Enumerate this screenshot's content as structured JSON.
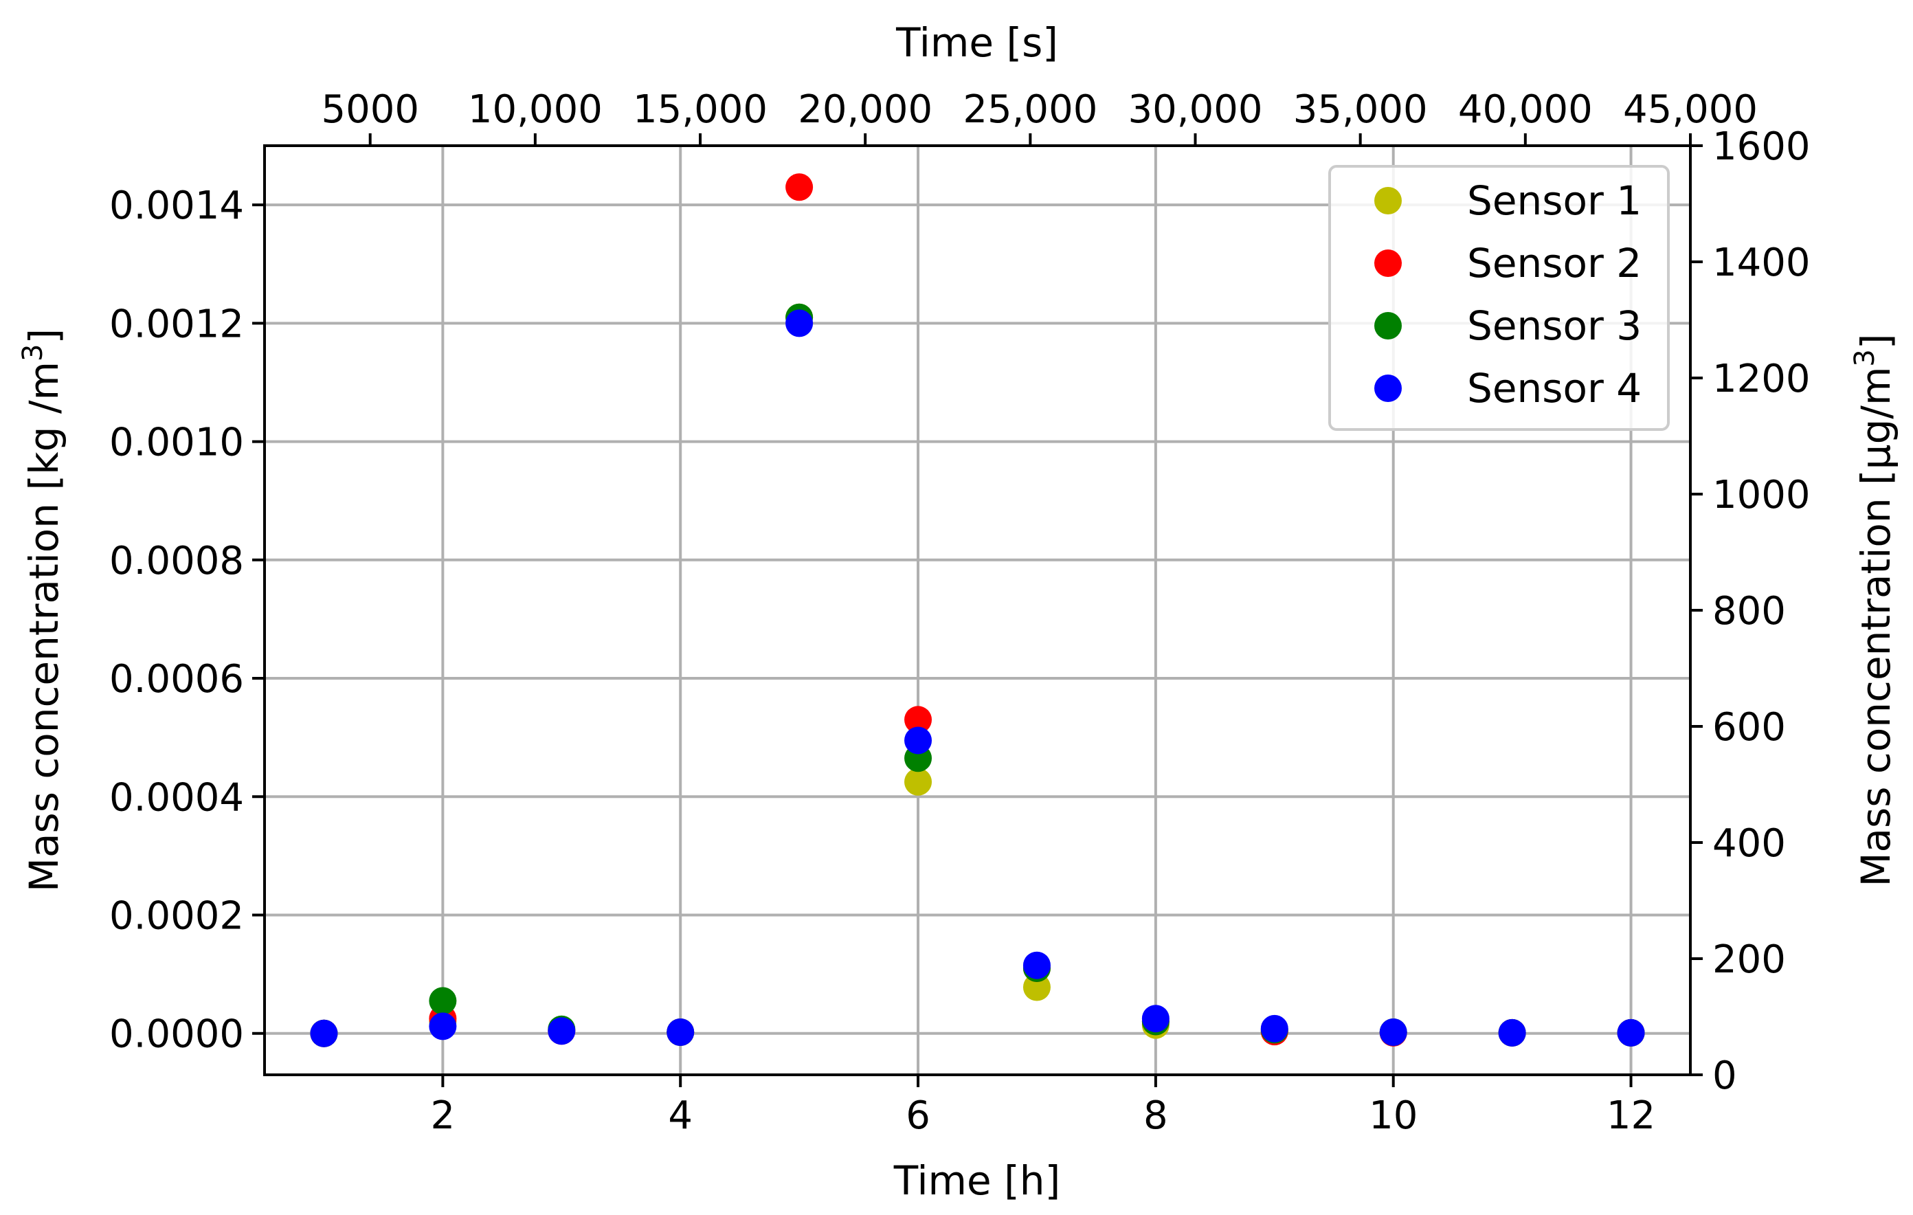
{
  "chart_data": {
    "type": "scatter",
    "xlabel": "Time [h]",
    "ylabel": "Mass concentration [kg /m",
    "ylabel_sup": "3",
    "ylabel_end": "]",
    "top_xlabel": "Time [s]",
    "right_ylabel": "Mass concentration [μg/m",
    "right_ylabel_sup": "3",
    "right_ylabel_end": "]",
    "xlim": [
      0.5,
      12.5
    ],
    "ylim": [
      -7e-05,
      0.0015
    ],
    "right_ylim": [
      0,
      1600
    ],
    "grid": true,
    "legend_placement": "top-right",
    "x_ticks": [
      2,
      4,
      6,
      8,
      10,
      12
    ],
    "x_tick_labels": [
      "2",
      "4",
      "6",
      "8",
      "10",
      "12"
    ],
    "y_ticks": [
      0,
      0.0002,
      0.0004,
      0.0006,
      0.0008,
      0.001,
      0.0012,
      0.0014
    ],
    "y_tick_labels": [
      "0.0000",
      "0.0002",
      "0.0004",
      "0.0006",
      "0.0008",
      "0.0010",
      "0.0012",
      "0.0014"
    ],
    "top_ticks_seconds": [
      5000,
      10000,
      15000,
      20000,
      25000,
      30000,
      35000,
      40000,
      45000
    ],
    "top_tick_labels": [
      "5000",
      "10,000",
      "15,000",
      "20,000",
      "25,000",
      "30,000",
      "35,000",
      "40,000",
      "45,000"
    ],
    "right_ticks": [
      0,
      200,
      400,
      600,
      800,
      1000,
      1200,
      1400,
      1600
    ],
    "right_tick_labels": [
      "0",
      "200",
      "400",
      "600",
      "800",
      "1000",
      "1200",
      "1400",
      "1600"
    ],
    "x": [
      1,
      2,
      3,
      4,
      5,
      6,
      7,
      8,
      9,
      10,
      11,
      12
    ],
    "series": [
      {
        "name": "Sensor 1",
        "color": "#bfbf00",
        "values": [
          0.0,
          2e-05,
          5e-06,
          2e-06,
          0.00121,
          0.000425,
          7.8e-05,
          1.4e-05,
          4e-06,
          2e-06,
          1e-06,
          1e-06
        ]
      },
      {
        "name": "Sensor 2",
        "color": "#ff0000",
        "values": [
          0.0,
          2.5e-05,
          4e-06,
          2e-06,
          0.00143,
          0.00053,
          0.00011,
          2e-05,
          3e-06,
          1e-06,
          1e-06,
          1e-06
        ]
      },
      {
        "name": "Sensor 3",
        "color": "#008000",
        "values": [
          0.0,
          5.5e-05,
          7e-06,
          2e-06,
          0.00121,
          0.000465,
          0.00011,
          2e-05,
          6e-06,
          2e-06,
          1e-06,
          1e-06
        ]
      },
      {
        "name": "Sensor 4",
        "color": "#0000ff",
        "values": [
          0.0,
          1.2e-05,
          4e-06,
          2e-06,
          0.0012,
          0.000495,
          0.000115,
          2.5e-05,
          8e-06,
          2e-06,
          1e-06,
          1e-06
        ]
      }
    ]
  }
}
